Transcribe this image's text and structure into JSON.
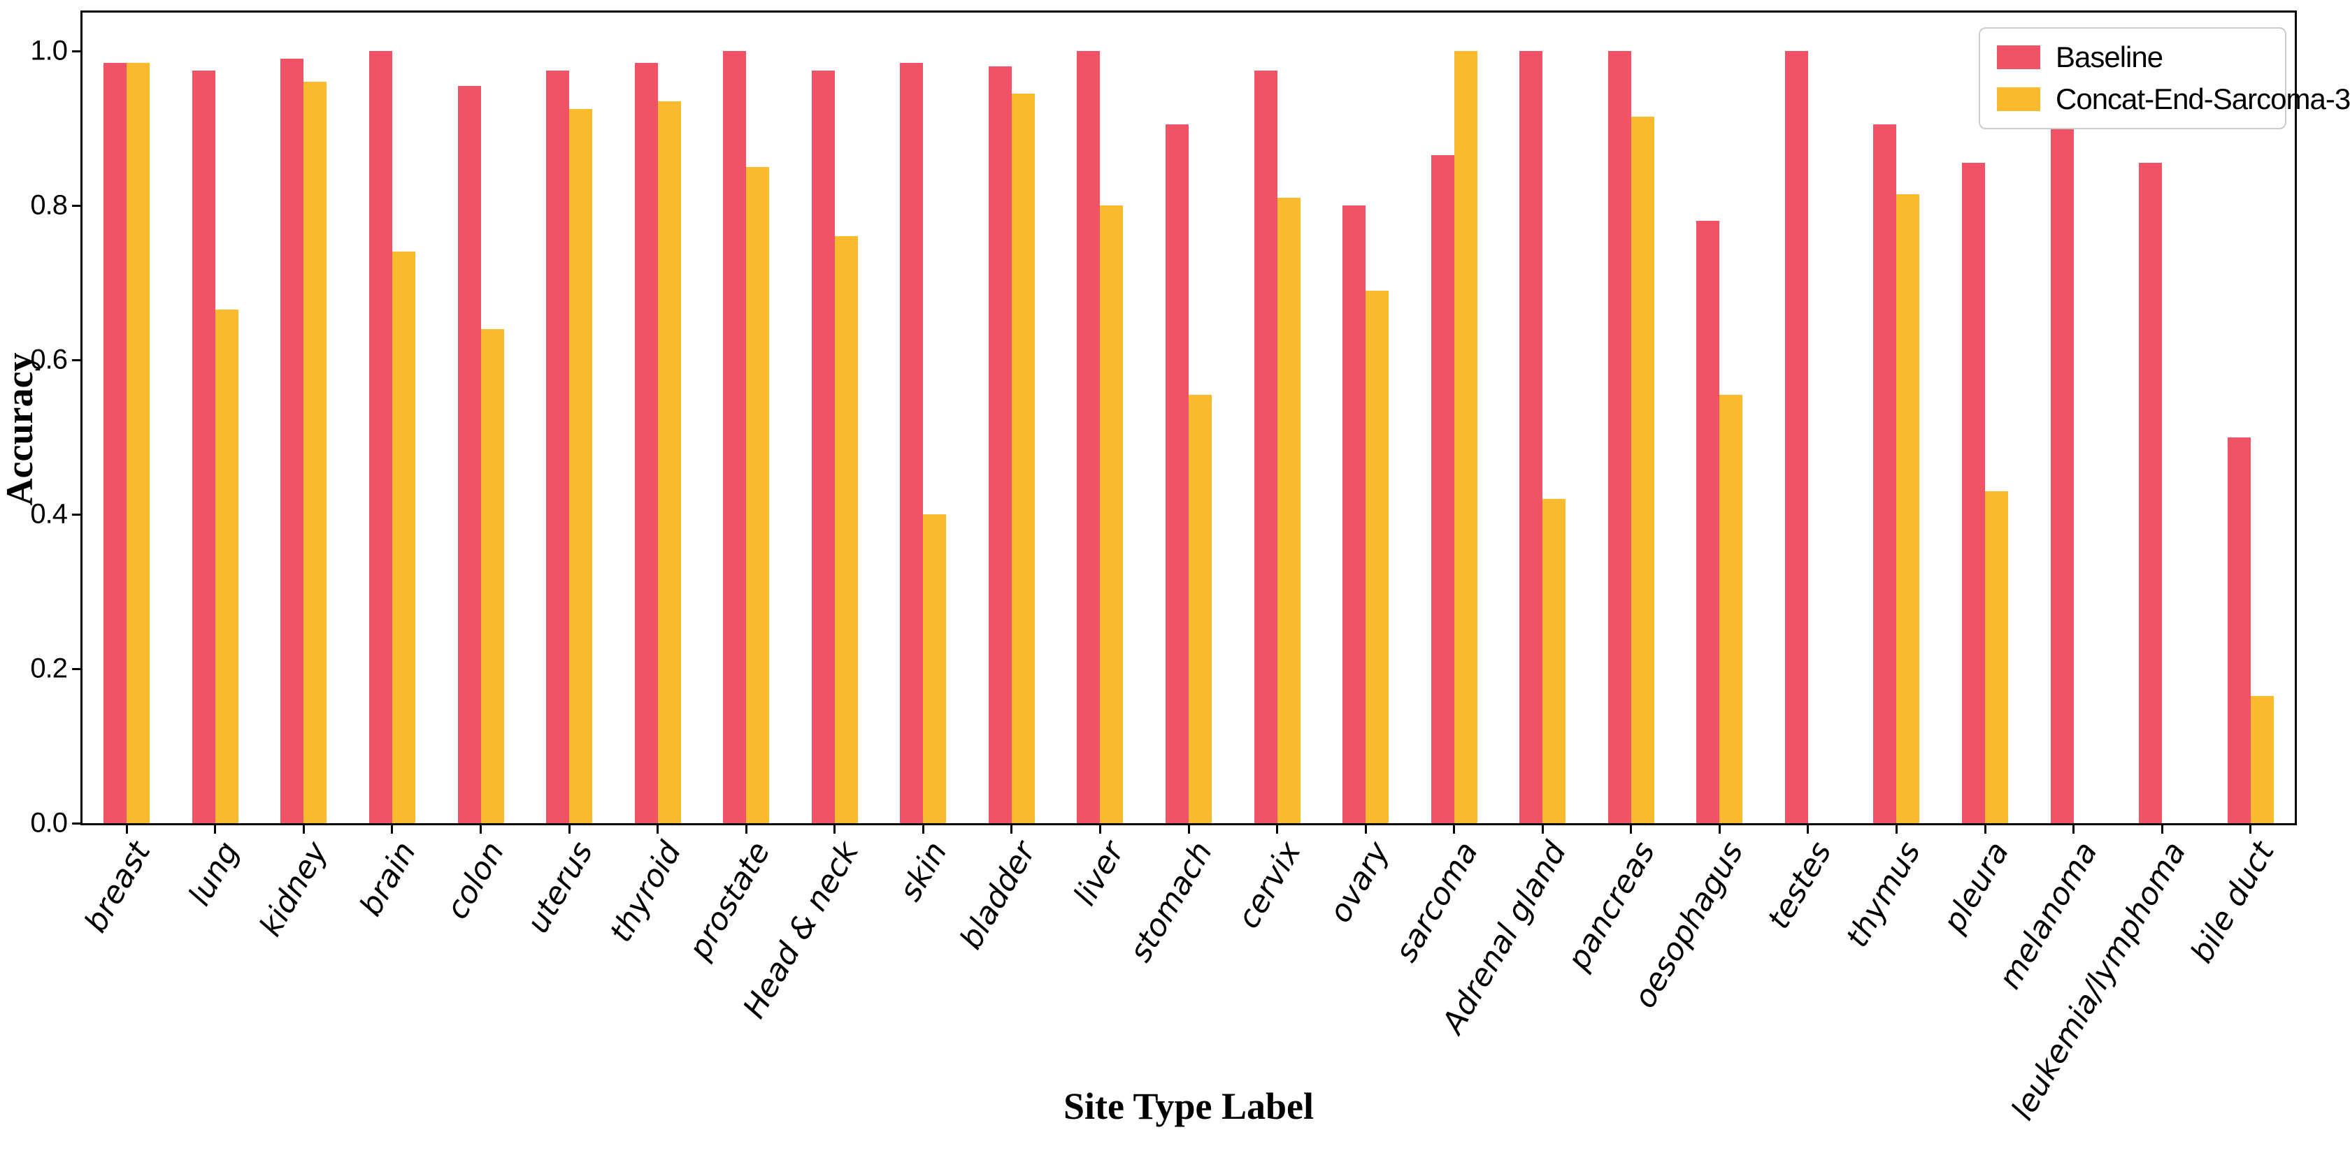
{
  "chart_data": {
    "type": "bar",
    "title": "",
    "xlabel": "Site Type Label",
    "ylabel": "Accuracy",
    "ylim": [
      0,
      1.05
    ],
    "yticks": [
      0.0,
      0.2,
      0.4,
      0.6,
      0.8,
      1.0
    ],
    "ytick_labels": [
      "0.0",
      "0.2",
      "0.4",
      "0.6",
      "0.8",
      "1.0"
    ],
    "grid": false,
    "legend_position": "upper right",
    "background_color": "#ffffff",
    "spine_color": "#000000",
    "categories": [
      "breast",
      "lung",
      "kidney",
      "brain",
      "colon",
      "uterus",
      "thyroid",
      "prostate",
      "Head & neck",
      "skin",
      "bladder",
      "liver",
      "stomach",
      "cervix",
      "ovary",
      "sarcoma",
      "Adrenal gland",
      "pancreas",
      "oesophagus",
      "testes",
      "thymus",
      "pleura",
      "melanoma",
      "leukemia/lymphoma",
      "bile duct"
    ],
    "series": [
      {
        "name": "Baseline",
        "color": "#f05365",
        "values": [
          0.985,
          0.975,
          0.99,
          1.0,
          0.955,
          0.975,
          0.985,
          1.0,
          0.975,
          0.985,
          0.98,
          1.0,
          0.905,
          0.975,
          0.8,
          0.865,
          1.0,
          1.0,
          0.78,
          1.0,
          0.905,
          0.855,
          0.905,
          0.855,
          0.5
        ]
      },
      {
        "name": "Concat-End-Sarcoma-3",
        "color": "#f9bb2d",
        "values": [
          0.985,
          0.665,
          0.96,
          0.74,
          0.64,
          0.925,
          0.935,
          0.85,
          0.76,
          0.4,
          0.945,
          0.8,
          0.555,
          0.81,
          0.69,
          1.0,
          0.42,
          0.915,
          0.555,
          0.0,
          0.815,
          0.43,
          0.0,
          0.0,
          0.165
        ]
      }
    ]
  }
}
